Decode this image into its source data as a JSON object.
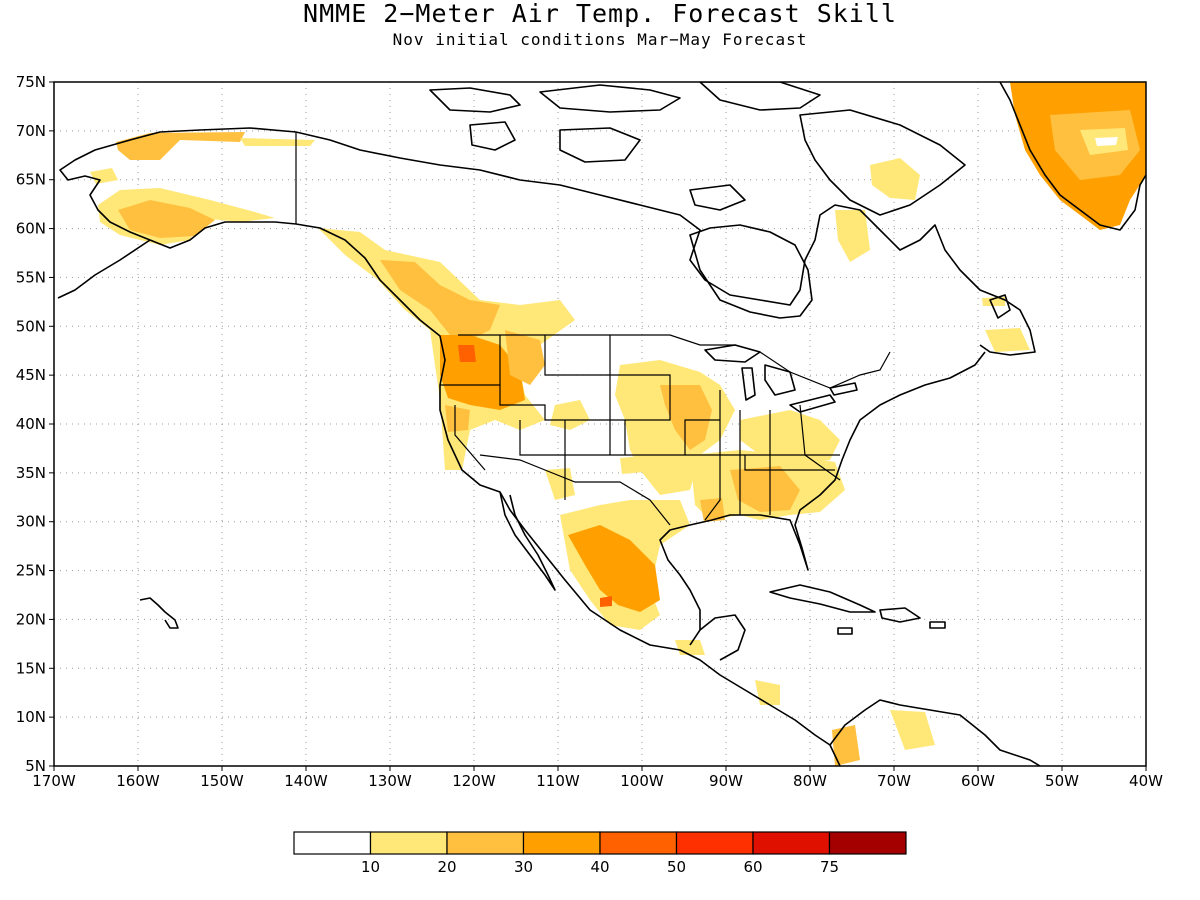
{
  "title": "NMME 2−Meter Air Temp. Forecast Skill",
  "subtitle": "Nov initial conditions  Mar−May Forecast",
  "lon_range": [
    -170,
    -40
  ],
  "lat_range": [
    5,
    75
  ],
  "lon_ticks": [
    "170W",
    "160W",
    "150W",
    "140W",
    "130W",
    "120W",
    "110W",
    "100W",
    "90W",
    "80W",
    "70W",
    "60W",
    "50W",
    "40W"
  ],
  "lat_ticks": [
    "5N",
    "10N",
    "15N",
    "20N",
    "25N",
    "30N",
    "35N",
    "40N",
    "45N",
    "50N",
    "55N",
    "60N",
    "65N",
    "70N",
    "75N"
  ],
  "colors": {
    "bin_0": "#ffffff",
    "bin_10": "#ffe878",
    "bin_20": "#ffc040",
    "bin_30": "#ffa000",
    "bin_40": "#ff6000",
    "bin_50": "#ff3000",
    "bin_60": "#e01000",
    "bin_75": "#a50000"
  },
  "colorbar": {
    "labels": [
      "10",
      "20",
      "30",
      "40",
      "50",
      "60",
      "75"
    ]
  }
}
